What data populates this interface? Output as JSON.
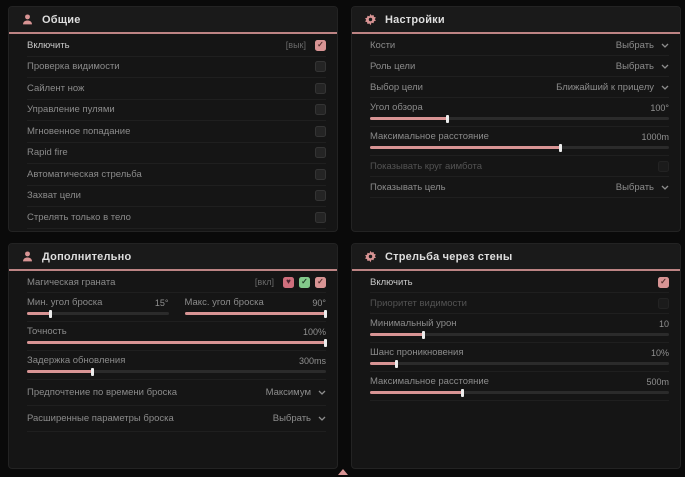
{
  "colors": {
    "accent": "#d89494",
    "header_underline": "#bd8484",
    "panel_bg": "#151515",
    "page_bg": "#0a0a0a"
  },
  "icons": {
    "check_glyph": "✓",
    "heart_glyph": "♥"
  },
  "panels": {
    "general": {
      "title": "Общие",
      "rows": [
        {
          "label": "Включить",
          "keybind": "[вык]",
          "checked": true
        },
        {
          "label": "Проверка видимости",
          "checked": false
        },
        {
          "label": "Сайлент нож",
          "checked": false
        },
        {
          "label": "Управление пулями",
          "checked": false
        },
        {
          "label": "Мгновенное попадание",
          "checked": false
        },
        {
          "label": "Rapid fire",
          "checked": false
        },
        {
          "label": "Автоматическая стрельба",
          "checked": false
        },
        {
          "label": "Захват цели",
          "checked": false
        },
        {
          "label": "Стрелять только в тело",
          "checked": false
        }
      ]
    },
    "settings": {
      "title": "Настройки",
      "rows": {
        "bones": {
          "label": "Кости",
          "value": "Выбрать"
        },
        "target_role": {
          "label": "Роль цели",
          "value": "Выбрать"
        },
        "target_select": {
          "label": "Выбор цели",
          "value": "Ближайший к прицелу"
        },
        "fov": {
          "label": "Угол обзора",
          "value": "100°",
          "fill": 26
        },
        "max_distance": {
          "label": "Максимальное расстояние",
          "value": "1000m",
          "fill": 64
        },
        "show_circle": {
          "label": "Показывать круг аимбота",
          "checked": false
        },
        "show_target": {
          "label": "Показывать цель",
          "value": "Выбрать"
        }
      }
    },
    "additional": {
      "title": "Дополнительно",
      "rows": {
        "magic_grenade": {
          "label": "Магическая граната",
          "keybind": "[вкл]",
          "checked": true
        },
        "min_throw": {
          "label": "Мин. угол броска",
          "value": "15°",
          "fill": 17
        },
        "max_throw": {
          "label": "Макс. угол броска",
          "value": "90°",
          "fill": 100
        },
        "accuracy": {
          "label": "Точность",
          "value": "100%",
          "fill": 100
        },
        "update_delay": {
          "label": "Задержка обновления",
          "value": "300ms",
          "fill": 22
        },
        "throw_time": {
          "label": "Предпочтение по времени броска",
          "value": "Максимум"
        },
        "advanced": {
          "label": "Расширенные параметры броска",
          "value": "Выбрать"
        }
      }
    },
    "wallbang": {
      "title": "Стрельба через стены",
      "rows": {
        "enable": {
          "label": "Включить",
          "checked": true
        },
        "visibility_priority": {
          "label": "Приоритет видимости",
          "checked": false
        },
        "min_damage": {
          "label": "Минимальный урон",
          "value": "10",
          "fill": 18
        },
        "penetration": {
          "label": "Шанс проникновения",
          "value": "10%",
          "fill": 9
        },
        "max_distance": {
          "label": "Максимальное расстояние",
          "value": "500m",
          "fill": 31
        }
      }
    }
  }
}
